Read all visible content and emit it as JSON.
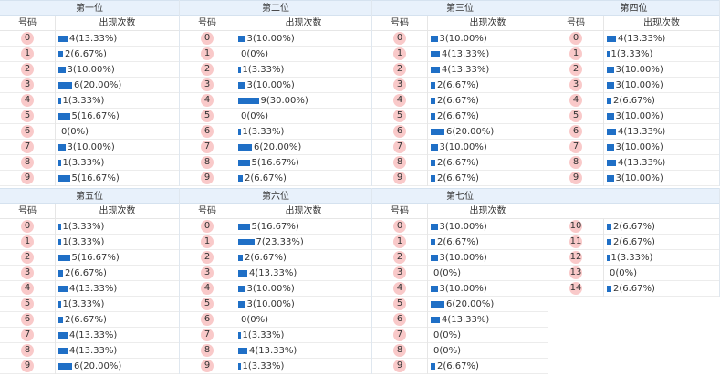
{
  "labels": {
    "number_col": "号码",
    "count_col": "出现次数"
  },
  "panels": [
    {
      "title": "第一位",
      "rows": [
        {
          "num": "0",
          "count": 4,
          "pct": "4(13.33%)"
        },
        {
          "num": "1",
          "count": 2,
          "pct": "2(6.67%)"
        },
        {
          "num": "2",
          "count": 3,
          "pct": "3(10.00%)"
        },
        {
          "num": "3",
          "count": 6,
          "pct": "6(20.00%)"
        },
        {
          "num": "4",
          "count": 1,
          "pct": "1(3.33%)"
        },
        {
          "num": "5",
          "count": 5,
          "pct": "5(16.67%)"
        },
        {
          "num": "6",
          "count": 0,
          "pct": "0(0%)"
        },
        {
          "num": "7",
          "count": 3,
          "pct": "3(10.00%)"
        },
        {
          "num": "8",
          "count": 1,
          "pct": "1(3.33%)"
        },
        {
          "num": "9",
          "count": 5,
          "pct": "5(16.67%)"
        }
      ]
    },
    {
      "title": "第二位",
      "rows": [
        {
          "num": "0",
          "count": 3,
          "pct": "3(10.00%)"
        },
        {
          "num": "1",
          "count": 0,
          "pct": "0(0%)"
        },
        {
          "num": "2",
          "count": 1,
          "pct": "1(3.33%)"
        },
        {
          "num": "3",
          "count": 3,
          "pct": "3(10.00%)"
        },
        {
          "num": "4",
          "count": 9,
          "pct": "9(30.00%)"
        },
        {
          "num": "5",
          "count": 0,
          "pct": "0(0%)"
        },
        {
          "num": "6",
          "count": 1,
          "pct": "1(3.33%)"
        },
        {
          "num": "7",
          "count": 6,
          "pct": "6(20.00%)"
        },
        {
          "num": "8",
          "count": 5,
          "pct": "5(16.67%)"
        },
        {
          "num": "9",
          "count": 2,
          "pct": "2(6.67%)"
        }
      ]
    },
    {
      "title": "第三位",
      "rows": [
        {
          "num": "0",
          "count": 3,
          "pct": "3(10.00%)"
        },
        {
          "num": "1",
          "count": 4,
          "pct": "4(13.33%)"
        },
        {
          "num": "2",
          "count": 4,
          "pct": "4(13.33%)"
        },
        {
          "num": "3",
          "count": 2,
          "pct": "2(6.67%)"
        },
        {
          "num": "4",
          "count": 2,
          "pct": "2(6.67%)"
        },
        {
          "num": "5",
          "count": 2,
          "pct": "2(6.67%)"
        },
        {
          "num": "6",
          "count": 6,
          "pct": "6(20.00%)"
        },
        {
          "num": "7",
          "count": 3,
          "pct": "3(10.00%)"
        },
        {
          "num": "8",
          "count": 2,
          "pct": "2(6.67%)"
        },
        {
          "num": "9",
          "count": 2,
          "pct": "2(6.67%)"
        }
      ]
    },
    {
      "title": "第四位",
      "rows": [
        {
          "num": "0",
          "count": 4,
          "pct": "4(13.33%)"
        },
        {
          "num": "1",
          "count": 1,
          "pct": "1(3.33%)"
        },
        {
          "num": "2",
          "count": 3,
          "pct": "3(10.00%)"
        },
        {
          "num": "3",
          "count": 3,
          "pct": "3(10.00%)"
        },
        {
          "num": "4",
          "count": 2,
          "pct": "2(6.67%)"
        },
        {
          "num": "5",
          "count": 3,
          "pct": "3(10.00%)"
        },
        {
          "num": "6",
          "count": 4,
          "pct": "4(13.33%)"
        },
        {
          "num": "7",
          "count": 3,
          "pct": "3(10.00%)"
        },
        {
          "num": "8",
          "count": 4,
          "pct": "4(13.33%)"
        },
        {
          "num": "9",
          "count": 3,
          "pct": "3(10.00%)"
        }
      ]
    },
    {
      "title": "第五位",
      "rows": [
        {
          "num": "0",
          "count": 1,
          "pct": "1(3.33%)"
        },
        {
          "num": "1",
          "count": 1,
          "pct": "1(3.33%)"
        },
        {
          "num": "2",
          "count": 5,
          "pct": "5(16.67%)"
        },
        {
          "num": "3",
          "count": 2,
          "pct": "2(6.67%)"
        },
        {
          "num": "4",
          "count": 4,
          "pct": "4(13.33%)"
        },
        {
          "num": "5",
          "count": 1,
          "pct": "1(3.33%)"
        },
        {
          "num": "6",
          "count": 2,
          "pct": "2(6.67%)"
        },
        {
          "num": "7",
          "count": 4,
          "pct": "4(13.33%)"
        },
        {
          "num": "8",
          "count": 4,
          "pct": "4(13.33%)"
        },
        {
          "num": "9",
          "count": 6,
          "pct": "6(20.00%)"
        }
      ]
    },
    {
      "title": "第六位",
      "rows": [
        {
          "num": "0",
          "count": 5,
          "pct": "5(16.67%)"
        },
        {
          "num": "1",
          "count": 7,
          "pct": "7(23.33%)"
        },
        {
          "num": "2",
          "count": 2,
          "pct": "2(6.67%)"
        },
        {
          "num": "3",
          "count": 4,
          "pct": "4(13.33%)"
        },
        {
          "num": "4",
          "count": 3,
          "pct": "3(10.00%)"
        },
        {
          "num": "5",
          "count": 3,
          "pct": "3(10.00%)"
        },
        {
          "num": "6",
          "count": 0,
          "pct": "0(0%)"
        },
        {
          "num": "7",
          "count": 1,
          "pct": "1(3.33%)"
        },
        {
          "num": "8",
          "count": 4,
          "pct": "4(13.33%)"
        },
        {
          "num": "9",
          "count": 1,
          "pct": "1(3.33%)"
        }
      ]
    },
    {
      "title": "第七位",
      "rows": [
        {
          "num": "0",
          "count": 3,
          "pct": "3(10.00%)"
        },
        {
          "num": "1",
          "count": 2,
          "pct": "2(6.67%)"
        },
        {
          "num": "2",
          "count": 3,
          "pct": "3(10.00%)"
        },
        {
          "num": "3",
          "count": 0,
          "pct": "0(0%)"
        },
        {
          "num": "4",
          "count": 3,
          "pct": "3(10.00%)"
        },
        {
          "num": "5",
          "count": 6,
          "pct": "6(20.00%)"
        },
        {
          "num": "6",
          "count": 4,
          "pct": "4(13.33%)"
        },
        {
          "num": "7",
          "count": 0,
          "pct": "0(0%)"
        },
        {
          "num": "8",
          "count": 0,
          "pct": "0(0%)"
        },
        {
          "num": "9",
          "count": 2,
          "pct": "2(6.67%)"
        }
      ]
    },
    {
      "title": "",
      "rows": [
        {
          "num": "10",
          "count": 2,
          "pct": "2(6.67%)"
        },
        {
          "num": "11",
          "count": 2,
          "pct": "2(6.67%)"
        },
        {
          "num": "12",
          "count": 1,
          "pct": "1(3.33%)"
        },
        {
          "num": "13",
          "count": 0,
          "pct": "0(0%)"
        },
        {
          "num": "14",
          "count": 2,
          "pct": "2(6.67%)"
        }
      ]
    }
  ]
}
